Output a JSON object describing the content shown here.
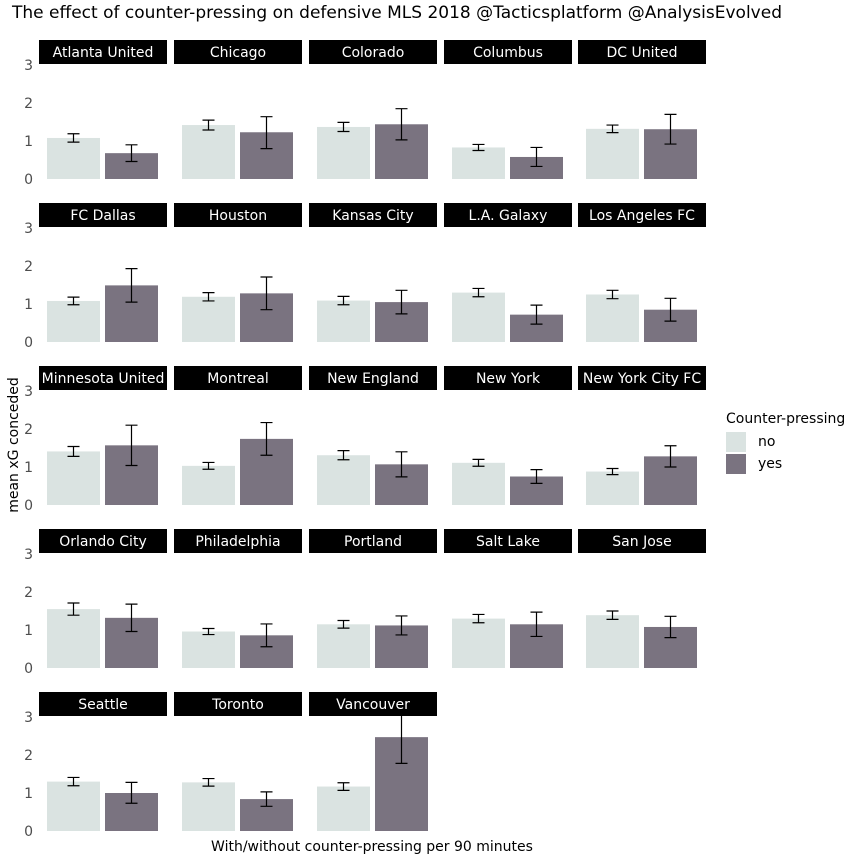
{
  "chart_data": {
    "type": "bar",
    "title": "The effect of counter-pressing on defensive MLS 2018 @Tacticsplatform @AnalysisEvolved",
    "xlabel": "With/without counter-pressing per 90 minutes",
    "ylabel": "mean xG conceded",
    "ylim": [
      0,
      3
    ],
    "yticks": [
      "0",
      "1",
      "2",
      "3"
    ],
    "grid": false,
    "legend": {
      "title": "Counter-pressing",
      "placement": "right",
      "entries": [
        {
          "label": "no",
          "color": "#dae3e1"
        },
        {
          "label": "yes",
          "color": "#7a7380"
        }
      ]
    },
    "categories": [
      "no",
      "yes"
    ],
    "panels": [
      {
        "team": "Atlanta United",
        "no": {
          "mean": 1.08,
          "low": 0.97,
          "high": 1.19
        },
        "yes": {
          "mean": 0.68,
          "low": 0.46,
          "high": 0.9
        }
      },
      {
        "team": "Chicago",
        "no": {
          "mean": 1.42,
          "low": 1.29,
          "high": 1.55
        },
        "yes": {
          "mean": 1.23,
          "low": 0.8,
          "high": 1.64
        }
      },
      {
        "team": "Colorado",
        "no": {
          "mean": 1.37,
          "low": 1.25,
          "high": 1.49
        },
        "yes": {
          "mean": 1.44,
          "low": 1.03,
          "high": 1.85
        }
      },
      {
        "team": "Columbus",
        "no": {
          "mean": 0.83,
          "low": 0.75,
          "high": 0.91
        },
        "yes": {
          "mean": 0.58,
          "low": 0.33,
          "high": 0.83
        }
      },
      {
        "team": "DC United",
        "no": {
          "mean": 1.32,
          "low": 1.22,
          "high": 1.42
        },
        "yes": {
          "mean": 1.31,
          "low": 0.92,
          "high": 1.7
        }
      },
      {
        "team": "FC Dallas",
        "no": {
          "mean": 1.08,
          "low": 0.98,
          "high": 1.18
        },
        "yes": {
          "mean": 1.49,
          "low": 1.05,
          "high": 1.93
        }
      },
      {
        "team": "Houston",
        "no": {
          "mean": 1.19,
          "low": 1.08,
          "high": 1.3
        },
        "yes": {
          "mean": 1.28,
          "low": 0.85,
          "high": 1.71
        }
      },
      {
        "team": "Kansas City",
        "no": {
          "mean": 1.09,
          "low": 0.98,
          "high": 1.2
        },
        "yes": {
          "mean": 1.05,
          "low": 0.74,
          "high": 1.36
        }
      },
      {
        "team": "L.A. Galaxy",
        "no": {
          "mean": 1.3,
          "low": 1.19,
          "high": 1.41
        },
        "yes": {
          "mean": 0.72,
          "low": 0.47,
          "high": 0.97
        }
      },
      {
        "team": "Los Angeles FC",
        "no": {
          "mean": 1.25,
          "low": 1.14,
          "high": 1.36
        },
        "yes": {
          "mean": 0.85,
          "low": 0.55,
          "high": 1.15
        }
      },
      {
        "team": "Minnesota United",
        "no": {
          "mean": 1.41,
          "low": 1.28,
          "high": 1.54
        },
        "yes": {
          "mean": 1.57,
          "low": 1.04,
          "high": 2.1
        }
      },
      {
        "team": "Montreal",
        "no": {
          "mean": 1.03,
          "low": 0.94,
          "high": 1.12
        },
        "yes": {
          "mean": 1.74,
          "low": 1.31,
          "high": 2.17
        }
      },
      {
        "team": "New England",
        "no": {
          "mean": 1.31,
          "low": 1.19,
          "high": 1.43
        },
        "yes": {
          "mean": 1.07,
          "low": 0.74,
          "high": 1.4
        }
      },
      {
        "team": "New York",
        "no": {
          "mean": 1.11,
          "low": 1.02,
          "high": 1.2
        },
        "yes": {
          "mean": 0.75,
          "low": 0.57,
          "high": 0.93
        }
      },
      {
        "team": "New York City FC",
        "no": {
          "mean": 0.88,
          "low": 0.8,
          "high": 0.96
        },
        "yes": {
          "mean": 1.28,
          "low": 1.0,
          "high": 1.56
        }
      },
      {
        "team": "Orlando City",
        "no": {
          "mean": 1.55,
          "low": 1.39,
          "high": 1.71
        },
        "yes": {
          "mean": 1.32,
          "low": 0.96,
          "high": 1.68
        }
      },
      {
        "team": "Philadelphia",
        "no": {
          "mean": 0.96,
          "low": 0.88,
          "high": 1.04
        },
        "yes": {
          "mean": 0.86,
          "low": 0.56,
          "high": 1.16
        }
      },
      {
        "team": "Portland",
        "no": {
          "mean": 1.15,
          "low": 1.05,
          "high": 1.25
        },
        "yes": {
          "mean": 1.12,
          "low": 0.87,
          "high": 1.37
        }
      },
      {
        "team": "Salt Lake",
        "no": {
          "mean": 1.3,
          "low": 1.19,
          "high": 1.41
        },
        "yes": {
          "mean": 1.15,
          "low": 0.83,
          "high": 1.47
        }
      },
      {
        "team": "San Jose",
        "no": {
          "mean": 1.39,
          "low": 1.28,
          "high": 1.5
        },
        "yes": {
          "mean": 1.08,
          "low": 0.8,
          "high": 1.36
        }
      },
      {
        "team": "Seattle",
        "no": {
          "mean": 1.3,
          "low": 1.19,
          "high": 1.41
        },
        "yes": {
          "mean": 1.0,
          "low": 0.73,
          "high": 1.28
        }
      },
      {
        "team": "Toronto",
        "no": {
          "mean": 1.28,
          "low": 1.18,
          "high": 1.38
        },
        "yes": {
          "mean": 0.84,
          "low": 0.65,
          "high": 1.03
        }
      },
      {
        "team": "Vancouver",
        "no": {
          "mean": 1.17,
          "low": 1.07,
          "high": 1.27
        },
        "yes": {
          "mean": 2.47,
          "low": 1.78,
          "high": 3.16
        }
      }
    ]
  }
}
